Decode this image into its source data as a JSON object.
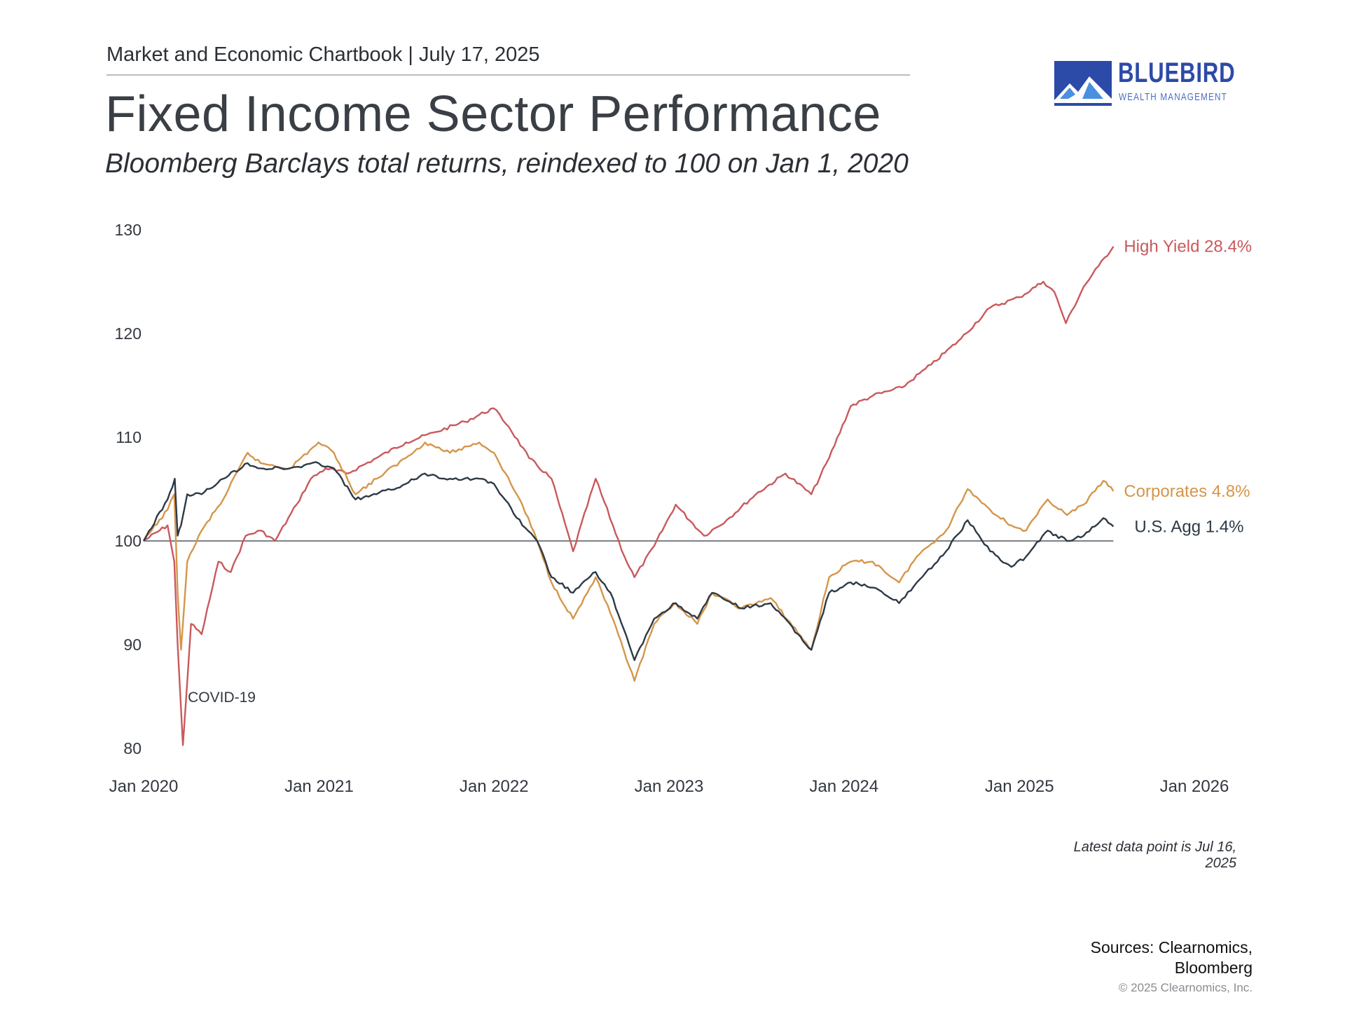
{
  "header": {
    "chartbook": "Market and Economic Chartbook | July 17, 2025",
    "title": "Fixed Income Sector Performance",
    "subtitle": "Bloomberg Barclays total returns, reindexed to 100 on Jan 1, 2020"
  },
  "logo": {
    "name": "BLUEBIRD",
    "tagline": "WEALTH MANAGEMENT",
    "color": "#2c4aa8"
  },
  "chart_data": {
    "type": "line",
    "title": "Fixed Income Sector Performance",
    "subtitle": "Bloomberg Barclays total returns, reindexed to 100 on Jan 1, 2020",
    "xlabel": "",
    "ylabel": "",
    "xlim": [
      "2020-01-01",
      "2026-01-01"
    ],
    "ylim": [
      80,
      130
    ],
    "y_ticks": [
      80,
      90,
      100,
      110,
      120,
      130
    ],
    "x_ticks": [
      "Jan 2020",
      "Jan 2021",
      "Jan 2022",
      "Jan 2023",
      "Jan 2024",
      "Jan 2025",
      "Jan 2026"
    ],
    "grid": false,
    "reference_line": 100,
    "legend": "inline labels at right end of lines",
    "annotations": [
      {
        "text": "COVID-19",
        "x": "2020-03-23",
        "y": 85
      }
    ],
    "series": [
      {
        "name": "High Yield",
        "label": "High Yield 28.4%",
        "color": "#c9595c",
        "points": [
          [
            "2020-01-01",
            100
          ],
          [
            "2020-02-20",
            101.5
          ],
          [
            "2020-03-05",
            98
          ],
          [
            "2020-03-12",
            90
          ],
          [
            "2020-03-23",
            80.3
          ],
          [
            "2020-04-09",
            92
          ],
          [
            "2020-05-01",
            91
          ],
          [
            "2020-06-05",
            98
          ],
          [
            "2020-07-01",
            97
          ],
          [
            "2020-08-01",
            100.5
          ],
          [
            "2020-09-01",
            101
          ],
          [
            "2020-10-01",
            100
          ],
          [
            "2020-11-15",
            103.5
          ],
          [
            "2020-12-15",
            106
          ],
          [
            "2021-01-15",
            107
          ],
          [
            "2021-03-01",
            106.5
          ],
          [
            "2021-05-01",
            108
          ],
          [
            "2021-07-01",
            109.5
          ],
          [
            "2021-09-01",
            110.5
          ],
          [
            "2021-11-01",
            111.5
          ],
          [
            "2021-12-31",
            112.8
          ],
          [
            "2022-02-01",
            111
          ],
          [
            "2022-03-15",
            108
          ],
          [
            "2022-05-01",
            106
          ],
          [
            "2022-06-15",
            99
          ],
          [
            "2022-08-01",
            106
          ],
          [
            "2022-09-30",
            98.5
          ],
          [
            "2022-10-21",
            96.5
          ],
          [
            "2022-12-01",
            99.5
          ],
          [
            "2023-01-15",
            103.5
          ],
          [
            "2023-03-15",
            100.5
          ],
          [
            "2023-05-01",
            102
          ],
          [
            "2023-07-01",
            104.5
          ],
          [
            "2023-09-01",
            106.5
          ],
          [
            "2023-10-25",
            104.5
          ],
          [
            "2023-12-01",
            108
          ],
          [
            "2024-01-15",
            113
          ],
          [
            "2024-03-01",
            114
          ],
          [
            "2024-05-01",
            114.8
          ],
          [
            "2024-07-01",
            117
          ],
          [
            "2024-09-01",
            119.5
          ],
          [
            "2024-11-01",
            122.5
          ],
          [
            "2025-01-01",
            123.5
          ],
          [
            "2025-02-20",
            125
          ],
          [
            "2025-03-15",
            124
          ],
          [
            "2025-04-08",
            121
          ],
          [
            "2025-05-15",
            124.5
          ],
          [
            "2025-06-15",
            126.5
          ],
          [
            "2025-07-16",
            128.4
          ]
        ]
      },
      {
        "name": "Corporates",
        "label": "Corporates 4.8%",
        "color": "#d4964a",
        "points": [
          [
            "2020-01-01",
            100
          ],
          [
            "2020-02-20",
            103
          ],
          [
            "2020-03-05",
            104.5
          ],
          [
            "2020-03-12",
            95
          ],
          [
            "2020-03-19",
            89.5
          ],
          [
            "2020-04-01",
            98
          ],
          [
            "2020-05-01",
            101
          ],
          [
            "2020-06-15",
            104
          ],
          [
            "2020-08-05",
            108.5
          ],
          [
            "2020-09-01",
            107.5
          ],
          [
            "2020-11-01",
            107
          ],
          [
            "2020-12-31",
            109.5
          ],
          [
            "2021-02-01",
            108.5
          ],
          [
            "2021-03-18",
            104.5
          ],
          [
            "2021-05-01",
            106
          ],
          [
            "2021-07-01",
            108
          ],
          [
            "2021-08-10",
            109.5
          ],
          [
            "2021-10-01",
            108.5
          ],
          [
            "2021-12-01",
            109.5
          ],
          [
            "2022-01-01",
            108.5
          ],
          [
            "2022-03-01",
            103.5
          ],
          [
            "2022-04-01",
            100
          ],
          [
            "2022-05-01",
            96
          ],
          [
            "2022-06-15",
            92.5
          ],
          [
            "2022-08-01",
            96.5
          ],
          [
            "2022-09-01",
            93
          ],
          [
            "2022-10-21",
            86.5
          ],
          [
            "2022-12-01",
            92
          ],
          [
            "2023-01-15",
            94
          ],
          [
            "2023-03-01",
            92
          ],
          [
            "2023-04-01",
            95
          ],
          [
            "2023-06-01",
            93.5
          ],
          [
            "2023-08-01",
            94.5
          ],
          [
            "2023-10-25",
            89.5
          ],
          [
            "2023-12-01",
            96.5
          ],
          [
            "2024-01-15",
            98
          ],
          [
            "2024-03-01",
            98
          ],
          [
            "2024-04-25",
            96
          ],
          [
            "2024-06-01",
            98.5
          ],
          [
            "2024-08-01",
            101
          ],
          [
            "2024-09-15",
            105
          ],
          [
            "2024-11-01",
            103
          ],
          [
            "2024-12-15",
            101.5
          ],
          [
            "2025-01-15",
            101
          ],
          [
            "2025-03-01",
            104
          ],
          [
            "2025-04-10",
            102.5
          ],
          [
            "2025-05-15",
            103.5
          ],
          [
            "2025-06-25",
            105.8
          ],
          [
            "2025-07-16",
            104.8
          ]
        ]
      },
      {
        "name": "U.S. Agg",
        "label": "U.S. Agg 1.4%",
        "color": "#2d3a46",
        "points": [
          [
            "2020-01-01",
            100
          ],
          [
            "2020-02-20",
            104
          ],
          [
            "2020-03-06",
            106
          ],
          [
            "2020-03-12",
            100.5
          ],
          [
            "2020-03-19",
            101.5
          ],
          [
            "2020-04-01",
            104.5
          ],
          [
            "2020-05-01",
            104.5
          ],
          [
            "2020-06-15",
            106
          ],
          [
            "2020-08-05",
            107.5
          ],
          [
            "2020-09-01",
            107
          ],
          [
            "2020-11-01",
            107
          ],
          [
            "2020-12-31",
            107.5
          ],
          [
            "2021-02-01",
            107
          ],
          [
            "2021-03-18",
            104
          ],
          [
            "2021-05-01",
            104.5
          ],
          [
            "2021-07-01",
            105.5
          ],
          [
            "2021-08-10",
            106.5
          ],
          [
            "2021-10-01",
            106
          ],
          [
            "2021-12-01",
            106
          ],
          [
            "2022-01-01",
            105.5
          ],
          [
            "2022-03-01",
            101.5
          ],
          [
            "2022-04-01",
            100
          ],
          [
            "2022-05-01",
            96.5
          ],
          [
            "2022-06-15",
            95
          ],
          [
            "2022-08-01",
            97
          ],
          [
            "2022-09-01",
            95
          ],
          [
            "2022-10-21",
            88.5
          ],
          [
            "2022-12-01",
            92.5
          ],
          [
            "2023-01-15",
            94
          ],
          [
            "2023-03-01",
            92.5
          ],
          [
            "2023-04-01",
            95
          ],
          [
            "2023-06-01",
            93.5
          ],
          [
            "2023-08-01",
            94
          ],
          [
            "2023-10-25",
            89.5
          ],
          [
            "2023-12-01",
            95
          ],
          [
            "2024-01-15",
            96
          ],
          [
            "2024-03-01",
            95.5
          ],
          [
            "2024-04-25",
            94
          ],
          [
            "2024-06-01",
            96
          ],
          [
            "2024-08-01",
            99
          ],
          [
            "2024-09-15",
            102
          ],
          [
            "2024-11-01",
            99
          ],
          [
            "2024-12-15",
            97.5
          ],
          [
            "2025-01-15",
            98.5
          ],
          [
            "2025-03-01",
            101
          ],
          [
            "2025-04-10",
            100
          ],
          [
            "2025-05-15",
            100.5
          ],
          [
            "2025-06-25",
            102.2
          ],
          [
            "2025-07-16",
            101.4
          ]
        ]
      }
    ]
  },
  "footer": {
    "latest": "Latest data point is Jul 16, 2025",
    "sources_line1": "Sources: Clearnomics,",
    "sources_line2": "Bloomberg",
    "copyright": "© 2025 Clearnomics, Inc."
  }
}
